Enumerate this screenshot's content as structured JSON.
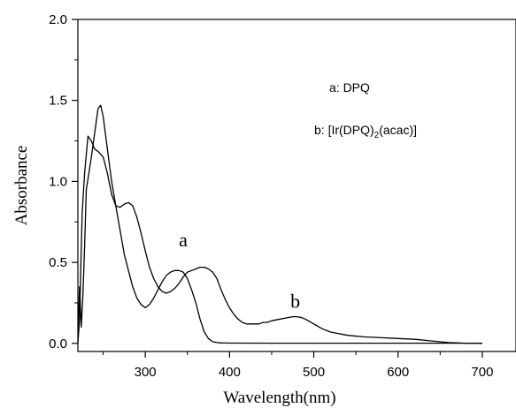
{
  "chart_data": {
    "type": "line",
    "xlabel": "Wavelength(nm)",
    "ylabel": "Absorbance",
    "xlim": [
      220,
      740
    ],
    "ylim": [
      -0.05,
      2.0
    ],
    "x_ticks": [
      300,
      400,
      500,
      600,
      700
    ],
    "y_ticks": [
      0.0,
      0.5,
      1.0,
      1.5,
      2.0
    ],
    "x_tick_labels": [
      "300",
      "400",
      "500",
      "600",
      "700"
    ],
    "y_tick_labels": [
      "0.0",
      "0.5",
      "1.0",
      "1.5",
      "2.0"
    ],
    "grid": false,
    "legend": {
      "placement": "top-right",
      "entry_a": "a: DPQ",
      "entry_b_prefix": "b: [Ir(DPQ)",
      "entry_b_sub": "2",
      "entry_b_suffix": "(acac)]"
    },
    "annotations": [
      {
        "text": "a",
        "x": 345,
        "y": 0.6
      },
      {
        "text": "b",
        "x": 478,
        "y": 0.22
      }
    ],
    "series": [
      {
        "x": [
          220,
          222,
          224,
          226,
          228,
          230,
          233,
          236,
          240,
          244,
          247,
          250,
          255,
          260,
          265,
          270,
          275,
          280,
          285,
          290,
          295,
          300,
          305,
          310,
          315,
          320,
          325,
          330,
          335,
          340,
          345,
          350,
          355,
          360,
          365,
          370,
          375,
          380,
          385,
          390,
          400,
          450,
          500,
          550,
          600,
          650,
          700
        ],
        "y": [
          0.05,
          0.35,
          0.1,
          0.3,
          0.6,
          0.95,
          1.05,
          1.15,
          1.3,
          1.45,
          1.47,
          1.4,
          1.2,
          1.0,
          0.85,
          0.7,
          0.55,
          0.45,
          0.35,
          0.28,
          0.24,
          0.22,
          0.24,
          0.28,
          0.33,
          0.38,
          0.42,
          0.44,
          0.45,
          0.45,
          0.44,
          0.4,
          0.33,
          0.25,
          0.15,
          0.07,
          0.03,
          0.01,
          0.005,
          0.003,
          0.002,
          0.001,
          0.001,
          0.001,
          0.001,
          0.001,
          0.001
        ]
      },
      {
        "x": [
          220,
          222,
          225,
          228,
          232,
          236,
          240,
          245,
          250,
          255,
          260,
          265,
          270,
          275,
          280,
          285,
          290,
          295,
          300,
          305,
          310,
          315,
          320,
          325,
          330,
          335,
          340,
          345,
          350,
          355,
          360,
          365,
          370,
          375,
          380,
          385,
          390,
          395,
          400,
          405,
          410,
          415,
          420,
          425,
          430,
          435,
          440,
          445,
          450,
          460,
          470,
          475,
          480,
          485,
          490,
          500,
          510,
          520,
          540,
          560,
          580,
          600,
          620,
          640,
          660,
          680,
          700
        ],
        "y": [
          0.0,
          0.15,
          0.8,
          1.05,
          1.28,
          1.25,
          1.2,
          1.18,
          1.15,
          1.05,
          0.92,
          0.85,
          0.84,
          0.86,
          0.87,
          0.85,
          0.78,
          0.68,
          0.57,
          0.47,
          0.4,
          0.35,
          0.32,
          0.31,
          0.32,
          0.34,
          0.37,
          0.41,
          0.44,
          0.45,
          0.46,
          0.47,
          0.47,
          0.46,
          0.44,
          0.4,
          0.33,
          0.27,
          0.22,
          0.18,
          0.15,
          0.13,
          0.12,
          0.12,
          0.12,
          0.12,
          0.13,
          0.13,
          0.14,
          0.15,
          0.16,
          0.165,
          0.165,
          0.16,
          0.15,
          0.12,
          0.09,
          0.07,
          0.05,
          0.04,
          0.035,
          0.03,
          0.025,
          0.015,
          0.005,
          0.001,
          0.0
        ]
      }
    ]
  }
}
